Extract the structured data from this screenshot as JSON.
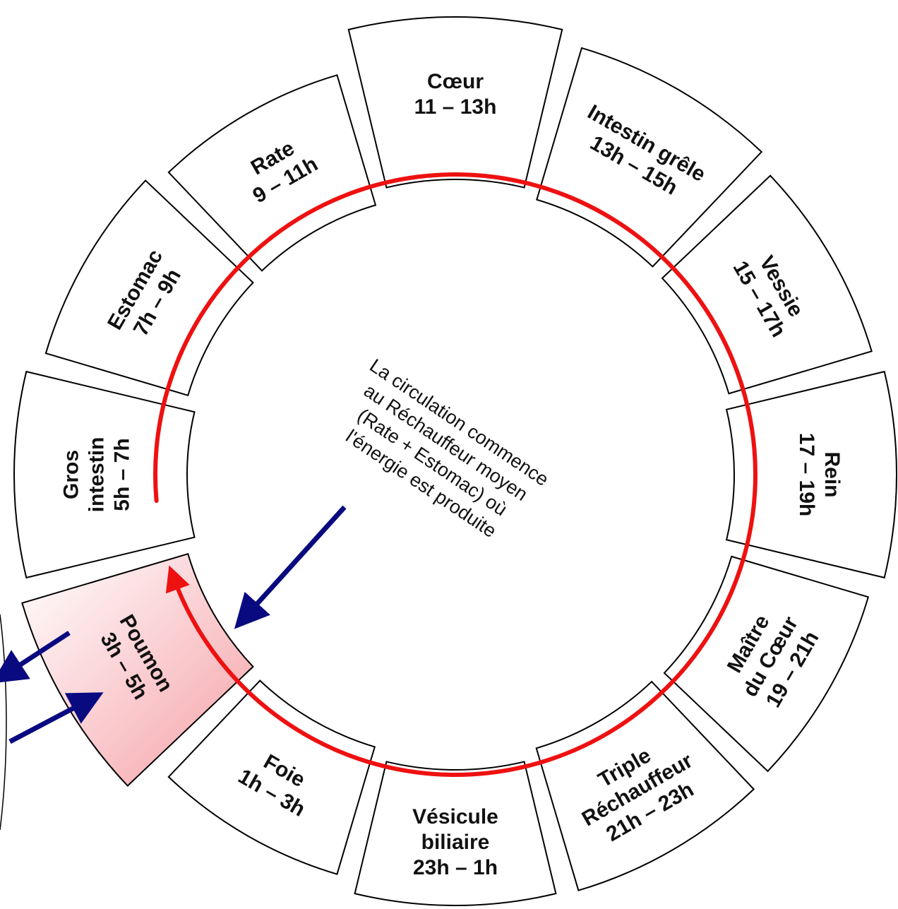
{
  "segments": [
    {
      "id": "coeur",
      "lines": [
        "Cœur",
        "11 – 13h"
      ]
    },
    {
      "id": "intestin-grele",
      "lines": [
        "Intestin grêle",
        "13h – 15h"
      ]
    },
    {
      "id": "vessie",
      "lines": [
        "Vessie",
        "15 – 17h"
      ]
    },
    {
      "id": "rein",
      "lines": [
        "Rein",
        "17 – 19h"
      ]
    },
    {
      "id": "maitre-du-coeur",
      "lines": [
        "Maître",
        "du Cœur",
        "19 – 21h"
      ]
    },
    {
      "id": "triple-rechauffeur",
      "lines": [
        "Triple",
        "Réchauffeur",
        "21h – 23h"
      ]
    },
    {
      "id": "vesicule-biliaire",
      "lines": [
        "Vésicule",
        "biliaire",
        "23h – 1h"
      ]
    },
    {
      "id": "foie",
      "lines": [
        "Foie",
        "1h – 3h"
      ]
    },
    {
      "id": "poumon",
      "lines": [
        "Poumon",
        "3h – 5h"
      ],
      "highlighted": true
    },
    {
      "id": "gros-intestin",
      "lines": [
        "Gros",
        "intestin",
        "5h – 7h"
      ]
    },
    {
      "id": "estomac",
      "lines": [
        "Estomac",
        "7h – 9h"
      ]
    },
    {
      "id": "rate",
      "lines": [
        "Rate",
        "9 – 11h"
      ]
    }
  ],
  "center_text": [
    "La circulation commence",
    "au Réchauffeur moyen",
    "(Rate + Estomac) où",
    "l'énergie est produite"
  ],
  "colors": {
    "cycle": "#ee1111",
    "arrows": "#0a0a80",
    "highlight": "#f5a0a6",
    "outline": "#000000"
  },
  "icons": {
    "cycle": "circular-arrow-icon",
    "pointer": "arrow-icon"
  }
}
